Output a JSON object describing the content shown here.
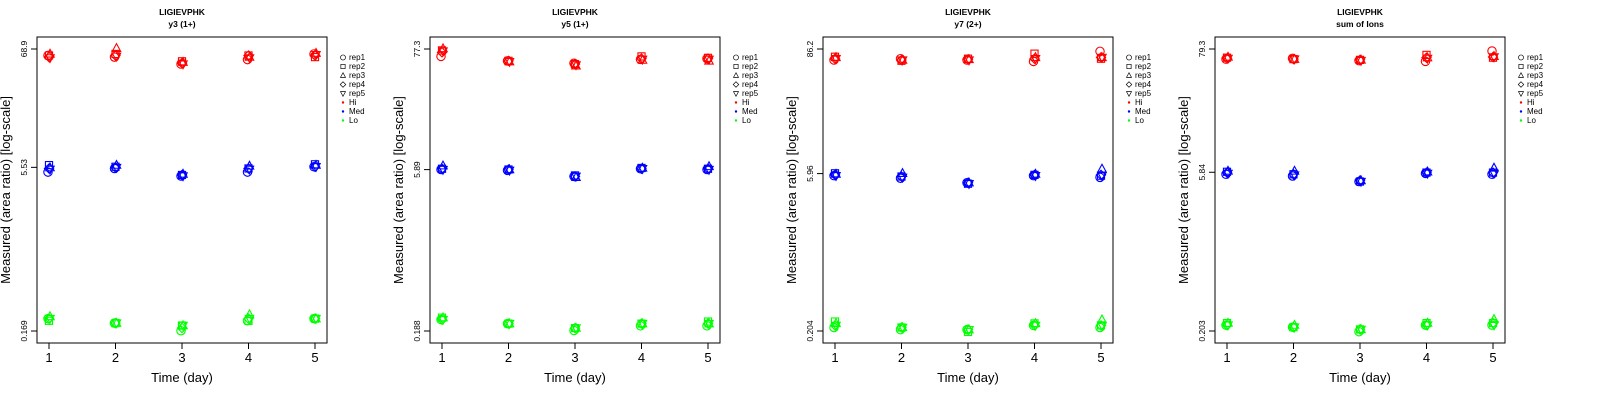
{
  "chart_data": [
    {
      "type": "scatter",
      "title": "LIGIEVPHK",
      "subtitle": "y3 (1+)",
      "xlabel": "Time (day)",
      "ylabel": "Measured (area ratio) [log-scale]",
      "x_ticks": [
        "1",
        "2",
        "3",
        "4",
        "5"
      ],
      "y_ticks": [
        "0.169",
        "5.53",
        "68.9"
      ],
      "y_scale": "log",
      "ylim": [
        0.169,
        68.9
      ],
      "legend": {
        "placement": "right",
        "reps": [
          "rep1",
          "rep2",
          "rep3",
          "rep4",
          "rep5"
        ],
        "levels": [
          "Hi",
          "Med",
          "Lo"
        ]
      },
      "series": [
        {
          "name": "Hi",
          "color": "#ff0000",
          "points": {
            "rep1": [
              60,
              58,
              50,
              55,
              62
            ],
            "rep2": [
              60,
              62,
              53,
              60,
              58
            ],
            "rep3": [
              62,
              70,
              52,
              58,
              63
            ],
            "rep4": [
              58,
              60,
              51,
              60,
              60
            ],
            "rep5": [
              57,
              59,
              50,
              57,
              61
            ]
          }
        },
        {
          "name": "Med",
          "color": "#0000ff",
          "points": {
            "rep1": [
              5.0,
              5.4,
              4.6,
              5.0,
              5.6
            ],
            "rep2": [
              5.8,
              5.6,
              4.7,
              5.4,
              5.9
            ],
            "rep3": [
              5.5,
              5.8,
              4.8,
              5.7,
              5.8
            ],
            "rep4": [
              5.4,
              5.5,
              4.7,
              5.4,
              5.6
            ],
            "rep5": [
              5.3,
              5.5,
              4.6,
              5.3,
              5.6
            ]
          }
        },
        {
          "name": "Lo",
          "color": "#00ff00",
          "points": {
            "rep1": [
              0.22,
              0.2,
              0.17,
              0.21,
              0.22
            ],
            "rep2": [
              0.21,
              0.2,
              0.19,
              0.21,
              0.22
            ],
            "rep3": [
              0.23,
              0.2,
              0.19,
              0.24,
              0.22
            ],
            "rep4": [
              0.22,
              0.2,
              0.18,
              0.22,
              0.22
            ],
            "rep5": [
              0.22,
              0.2,
              0.19,
              0.22,
              0.22
            ]
          }
        }
      ]
    },
    {
      "type": "scatter",
      "title": "LIGIEVPHK",
      "subtitle": "y5 (1+)",
      "xlabel": "Time (day)",
      "ylabel": "Measured (area ratio) [log-scale]",
      "x_ticks": [
        "1",
        "2",
        "3",
        "4",
        "5"
      ],
      "y_ticks": [
        "0.188",
        "5.89",
        "77.3"
      ],
      "y_scale": "log",
      "ylim": [
        0.188,
        77.3
      ],
      "legend": {
        "placement": "right",
        "reps": [
          "rep1",
          "rep2",
          "rep3",
          "rep4",
          "rep5"
        ],
        "levels": [
          "Hi",
          "Med",
          "Lo"
        ]
      },
      "series": [
        {
          "name": "Hi",
          "color": "#ff0000",
          "points": {
            "rep1": [
              66,
              60,
              57,
              62,
              63
            ],
            "rep2": [
              75,
              60,
              56,
              66,
              64
            ],
            "rep3": [
              78,
              59,
              54,
              61,
              60
            ],
            "rep4": [
              72,
              60,
              56,
              63,
              63
            ],
            "rep5": [
              74,
              59,
              55,
              62,
              62
            ]
          }
        },
        {
          "name": "Med",
          "color": "#0000ff",
          "points": {
            "rep1": [
              5.9,
              5.8,
              5.1,
              6.0,
              5.9
            ],
            "rep2": [
              6.0,
              5.9,
              5.2,
              6.1,
              6.0
            ],
            "rep3": [
              6.4,
              5.9,
              5.0,
              6.1,
              6.3
            ],
            "rep4": [
              6.0,
              5.9,
              5.1,
              6.0,
              6.0
            ],
            "rep5": [
              5.9,
              5.8,
              5.1,
              6.0,
              5.9
            ]
          }
        },
        {
          "name": "Lo",
          "color": "#00ff00",
          "points": {
            "rep1": [
              0.24,
              0.22,
              0.19,
              0.21,
              0.21
            ],
            "rep2": [
              0.25,
              0.22,
              0.2,
              0.22,
              0.23
            ],
            "rep3": [
              0.25,
              0.22,
              0.2,
              0.22,
              0.22
            ],
            "rep4": [
              0.24,
              0.22,
              0.2,
              0.22,
              0.22
            ],
            "rep5": [
              0.24,
              0.22,
              0.2,
              0.22,
              0.22
            ]
          }
        }
      ]
    },
    {
      "type": "scatter",
      "title": "LIGIEVPHK",
      "subtitle": "y7 (2+)",
      "xlabel": "Time (day)",
      "ylabel": "Measured (area ratio) [log-scale]",
      "x_ticks": [
        "1",
        "2",
        "3",
        "4",
        "5"
      ],
      "y_ticks": [
        "0.204",
        "5.96",
        "86.2"
      ],
      "y_scale": "log",
      "ylim": [
        0.204,
        86.2
      ],
      "legend": {
        "placement": "right",
        "reps": [
          "rep1",
          "rep2",
          "rep3",
          "rep4",
          "rep5"
        ],
        "levels": [
          "Hi",
          "Med",
          "Lo"
        ]
      },
      "series": [
        {
          "name": "Hi",
          "color": "#ff0000",
          "points": {
            "rep1": [
              68,
              70,
              68,
              66,
              82
            ],
            "rep2": [
              73,
              67,
              70,
              78,
              70
            ],
            "rep3": [
              72,
              68,
              69,
              72,
              72
            ],
            "rep4": [
              70,
              68,
              69,
              70,
              72
            ],
            "rep5": [
              70,
              68,
              68,
              70,
              72
            ]
          }
        },
        {
          "name": "Med",
          "color": "#0000ff",
          "points": {
            "rep1": [
              5.7,
              5.4,
              4.9,
              5.7,
              5.5
            ],
            "rep2": [
              6.0,
              5.6,
              4.8,
              5.8,
              5.7
            ],
            "rep3": [
              5.9,
              6.0,
              4.9,
              5.9,
              6.6
            ],
            "rep4": [
              5.8,
              5.6,
              4.9,
              5.8,
              5.8
            ],
            "rep5": [
              5.7,
              5.5,
              4.8,
              5.7,
              5.7
            ]
          }
        },
        {
          "name": "Lo",
          "color": "#00ff00",
          "points": {
            "rep1": [
              0.22,
              0.21,
              0.21,
              0.23,
              0.22
            ],
            "rep2": [
              0.25,
              0.22,
              0.2,
              0.24,
              0.23
            ],
            "rep3": [
              0.24,
              0.22,
              0.21,
              0.24,
              0.26
            ],
            "rep4": [
              0.23,
              0.22,
              0.21,
              0.23,
              0.23
            ],
            "rep5": [
              0.23,
              0.22,
              0.21,
              0.23,
              0.23
            ]
          }
        }
      ]
    },
    {
      "type": "scatter",
      "title": "LIGIEVPHK",
      "subtitle": "sum of Ions",
      "xlabel": "Time (day)",
      "ylabel": "Measured (area ratio) [log-scale]",
      "x_ticks": [
        "1",
        "2",
        "3",
        "4",
        "5"
      ],
      "y_ticks": [
        "0.203",
        "5.84",
        "79.3"
      ],
      "y_scale": "log",
      "ylim": [
        0.203,
        79.3
      ],
      "legend": {
        "placement": "right",
        "reps": [
          "rep1",
          "rep2",
          "rep3",
          "rep4",
          "rep5"
        ],
        "levels": [
          "Hi",
          "Med",
          "Lo"
        ]
      },
      "series": [
        {
          "name": "Hi",
          "color": "#ff0000",
          "points": {
            "rep1": [
              64,
              65,
              62,
              61,
              76
            ],
            "rep2": [
              66,
              64,
              63,
              70,
              66
            ],
            "rep3": [
              67,
              64,
              63,
              66,
              68
            ],
            "rep4": [
              65,
              64,
              63,
              66,
              67
            ],
            "rep5": [
              65,
              64,
              62,
              65,
              67
            ]
          }
        },
        {
          "name": "Med",
          "color": "#0000ff",
          "points": {
            "rep1": [
              5.6,
              5.4,
              4.8,
              5.7,
              5.6
            ],
            "rep2": [
              5.9,
              5.6,
              4.8,
              5.8,
              5.8
            ],
            "rep3": [
              6.0,
              6.0,
              4.9,
              5.9,
              6.4
            ],
            "rep4": [
              5.8,
              5.6,
              4.9,
              5.8,
              5.8
            ],
            "rep5": [
              5.7,
              5.5,
              4.8,
              5.7,
              5.7
            ]
          }
        },
        {
          "name": "Lo",
          "color": "#00ff00",
          "points": {
            "rep1": [
              0.23,
              0.22,
              0.2,
              0.23,
              0.23
            ],
            "rep2": [
              0.24,
              0.22,
              0.21,
              0.24,
              0.24
            ],
            "rep3": [
              0.24,
              0.23,
              0.21,
              0.24,
              0.26
            ],
            "rep4": [
              0.23,
              0.22,
              0.21,
              0.23,
              0.24
            ],
            "rep5": [
              0.23,
              0.22,
              0.21,
              0.23,
              0.23
            ]
          }
        }
      ]
    }
  ]
}
